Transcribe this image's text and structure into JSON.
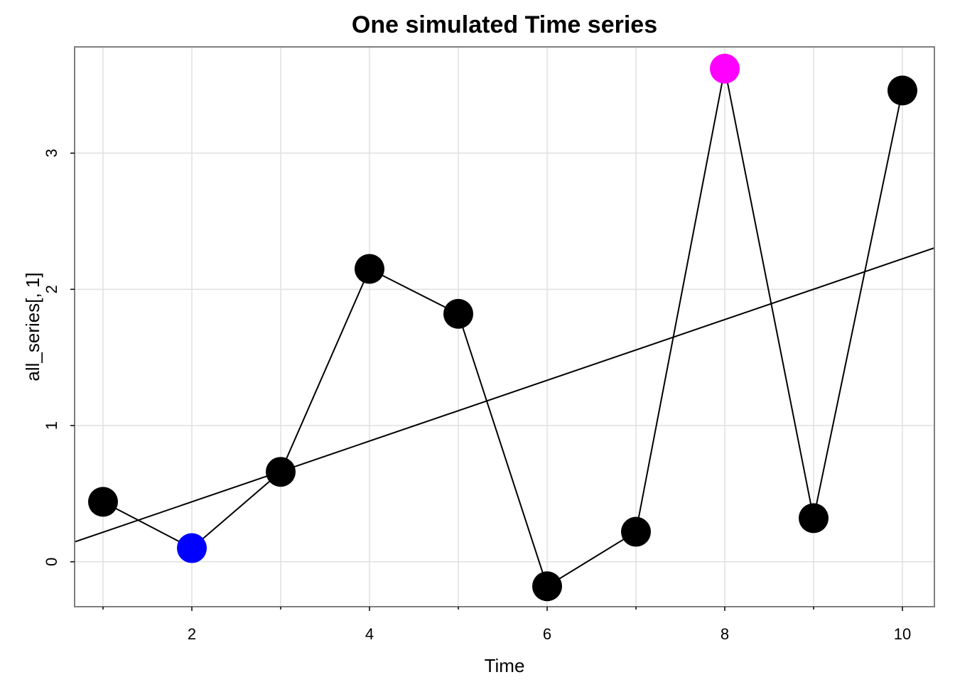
{
  "chart_data": {
    "type": "line",
    "title": "One simulated Time series",
    "xlabel": "Time",
    "ylabel": "all_series[, 1]",
    "xlim": [
      0.68,
      10.36
    ],
    "ylim": [
      -0.33,
      3.78
    ],
    "x_ticks": [
      2,
      4,
      6,
      8,
      10
    ],
    "x_minor_ticks": [
      1,
      3,
      5,
      7,
      9
    ],
    "y_ticks": [
      0,
      1,
      2,
      3
    ],
    "grid": true,
    "series": [
      {
        "x": [
          1,
          2,
          3,
          4,
          5,
          6,
          7,
          8,
          9,
          10
        ],
        "y": [
          0.44,
          0.1,
          0.66,
          2.15,
          1.82,
          -0.18,
          0.22,
          3.62,
          0.32,
          3.46
        ],
        "point_colors": [
          "#000000",
          "#0000ff",
          "#000000",
          "#000000",
          "#000000",
          "#000000",
          "#000000",
          "#ff00ff",
          "#000000",
          "#000000"
        ]
      }
    ],
    "trend_line": {
      "intercept": -0.006,
      "slope": 0.223
    },
    "colors": {
      "line": "#000000",
      "grid": "#e0e0e0",
      "frame": "#7f7f7f"
    }
  }
}
